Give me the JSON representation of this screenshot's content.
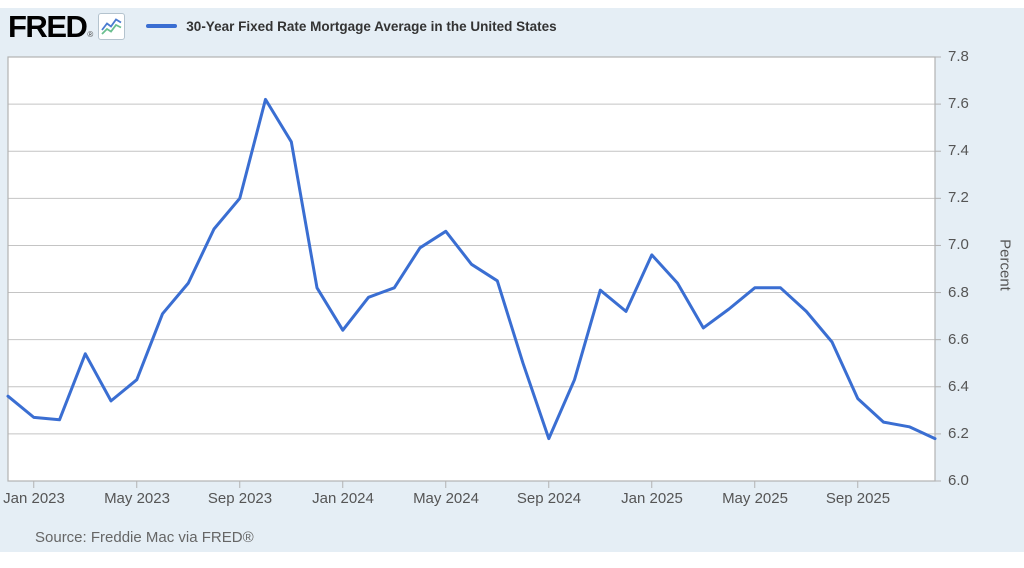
{
  "header": {
    "logo_text": "FRED",
    "logo_reg": "®",
    "logo_icon": "line-chart-icon",
    "series_title": "30-Year Fixed Rate Mortgage Average in the United States"
  },
  "footer": {
    "source": "Source: Freddie Mac via FRED®"
  },
  "colors": {
    "panel_bg": "#e5eef5",
    "plot_bg": "#ffffff",
    "grid": "#c4c4c4",
    "frame": "#b2b2b2",
    "line": "#3a6ed2",
    "legend_text": "#333333",
    "axis_text": "#555555",
    "source_text": "#666666",
    "icon_blue": "#4a7bd0",
    "icon_green": "#6abf8f"
  },
  "chart_data": {
    "type": "line",
    "title": "30-Year Fixed Rate Mortgage Average in the United States",
    "xlabel": "",
    "ylabel": "Percent",
    "ylim": [
      6.0,
      7.8
    ],
    "y_tick_step": 0.2,
    "y_tick_labels": [
      "6.0",
      "6.2",
      "6.4",
      "6.6",
      "6.8",
      "7.0",
      "7.2",
      "7.4",
      "7.6",
      "7.8"
    ],
    "grid": true,
    "legend_position": "top",
    "x": [
      "Dec 2022",
      "Jan 2023",
      "Feb 2023",
      "Mar 2023",
      "Apr 2023",
      "May 2023",
      "Jun 2023",
      "Jul 2023",
      "Aug 2023",
      "Sep 2023",
      "Oct 2023",
      "Nov 2023",
      "Dec 2023",
      "Jan 2024",
      "Feb 2024",
      "Mar 2024",
      "Apr 2024",
      "May 2024",
      "Jun 2024",
      "Jul 2024",
      "Aug 2024",
      "Sep 2024",
      "Oct 2024",
      "Nov 2024",
      "Dec 2024",
      "Jan 2025",
      "Feb 2025",
      "Mar 2025",
      "Apr 2025",
      "May 2025",
      "Jun 2025",
      "Jul 2025",
      "Aug 2025",
      "Sep 2025",
      "Oct 2025",
      "Nov 2025",
      "Dec 2025"
    ],
    "series": [
      {
        "name": "30-Year Fixed Rate Mortgage Average in the United States",
        "values": [
          6.36,
          6.27,
          6.26,
          6.54,
          6.34,
          6.43,
          6.71,
          6.84,
          7.07,
          7.2,
          7.62,
          7.44,
          6.82,
          6.64,
          6.78,
          6.82,
          6.99,
          7.06,
          6.92,
          6.85,
          6.5,
          6.18,
          6.43,
          6.81,
          6.72,
          6.96,
          6.84,
          6.65,
          6.73,
          6.82,
          6.82,
          6.72,
          6.59,
          6.35,
          6.25,
          6.23,
          6.18
        ]
      }
    ],
    "x_tick_labels": [
      "Jan 2023",
      "May 2023",
      "Sep 2023",
      "Jan 2024",
      "May 2024",
      "Sep 2024",
      "Jan 2025",
      "May 2025",
      "Sep 2025"
    ],
    "x_tick_indices": [
      1,
      5,
      9,
      13,
      17,
      21,
      25,
      29,
      33
    ]
  }
}
